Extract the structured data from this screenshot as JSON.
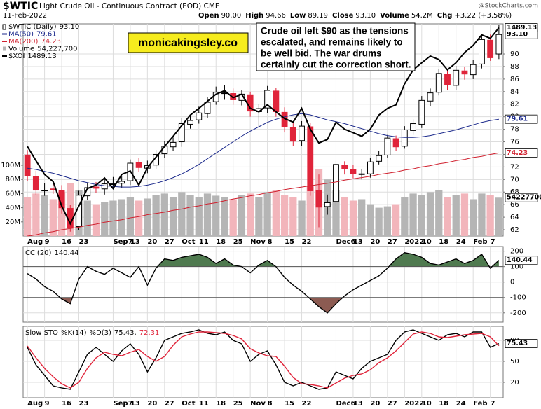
{
  "header": {
    "date": "11-Feb-2022",
    "source": "@StockCharts.com",
    "quote": [
      {
        "label": "Open",
        "value": "90.00"
      },
      {
        "label": "High",
        "value": "94.66"
      },
      {
        "label": "Low",
        "value": "89.19"
      },
      {
        "label": "Close",
        "value": "93.10"
      },
      {
        "label": "Volume",
        "value": "54.2M"
      },
      {
        "label": "Chg",
        "value": "+3.22 (+3.58%)"
      }
    ]
  },
  "annotations": {
    "site": "monicakingsley.co",
    "note": [
      "Crude oil left $90 as the tensions",
      "escalated, and remains likely to",
      "be well bid. The war drums",
      "certainly cut the correction short."
    ]
  },
  "chart_data": [
    {
      "type": "candlestick",
      "title": "$WTIC",
      "subtitle": "Light Crude Oil - Continuous Contract (EOD) CME",
      "legend_label": "$WTIC (Daily)",
      "last_label": "93.10",
      "categories": [
        "Aug",
        null,
        "9",
        null,
        "16",
        null,
        "23",
        null,
        null,
        null,
        "Sep7",
        null,
        "13",
        null,
        "20",
        null,
        "27",
        null,
        "Oct",
        null,
        "11",
        null,
        "18",
        null,
        "25",
        null,
        "Nov",
        null,
        "8",
        null,
        "15",
        null,
        "22",
        null,
        null,
        null,
        "Dec6",
        null,
        "13",
        null,
        "20",
        null,
        "27",
        null,
        "2022",
        null,
        "10",
        null,
        "18",
        null,
        "24",
        null,
        "Feb",
        null,
        "7",
        null
      ],
      "open": [
        73.9,
        70.5,
        68.2,
        68.5,
        68.3,
        65.4,
        62.5,
        67.4,
        68.8,
        68.5,
        69.2,
        69.4,
        69.8,
        72.7,
        71.8,
        72.3,
        74.1,
        75.2,
        76.0,
        78.8,
        79.5,
        80.5,
        82.4,
        83.8,
        83.7,
        82.6,
        83.5,
        80.8,
        81.4,
        84.1,
        80.7,
        78.3,
        76.2,
        78.4,
        68.3,
        65.7,
        66.5,
        72.3,
        71.6,
        70.8,
        70.9,
        72.9,
        73.9,
        76.5,
        75.3,
        77.8,
        78.8,
        82.5,
        83.9,
        86.8,
        85.0,
        87.3,
        86.7,
        88.4,
        92.2,
        90.0
      ],
      "high": [
        74.7,
        71.4,
        69.4,
        69.3,
        69.1,
        66.0,
        68.2,
        69.5,
        69.6,
        70.1,
        70.4,
        70.5,
        73.2,
        73.4,
        73.0,
        74.7,
        76.1,
        76.7,
        79.8,
        80.1,
        81.6,
        83.1,
        84.8,
        85.0,
        84.5,
        84.3,
        84.0,
        82.0,
        84.9,
        84.6,
        81.5,
        79.1,
        79.3,
        79.0,
        70.8,
        67.6,
        73.0,
        72.9,
        72.3,
        71.7,
        73.5,
        74.5,
        77.1,
        77.0,
        78.5,
        79.6,
        83.3,
        84.5,
        87.6,
        87.4,
        88.1,
        88.0,
        89.0,
        93.0,
        93.1,
        94.66
      ],
      "low": [
        69.8,
        67.5,
        67.4,
        67.7,
        64.6,
        61.7,
        62.0,
        66.8,
        67.9,
        67.6,
        68.5,
        68.7,
        69.1,
        71.2,
        71.0,
        71.7,
        73.4,
        74.5,
        75.2,
        78.1,
        78.9,
        79.8,
        81.9,
        82.7,
        81.9,
        81.8,
        80.0,
        78.4,
        80.6,
        80.0,
        77.5,
        75.3,
        75.3,
        67.4,
        62.4,
        64.4,
        65.8,
        70.8,
        70.2,
        70.0,
        70.3,
        72.4,
        73.5,
        74.6,
        74.9,
        77.1,
        78.2,
        81.7,
        83.4,
        84.2,
        84.3,
        85.9,
        86.0,
        87.7,
        88.9,
        89.19
      ],
      "close": [
        70.6,
        68.3,
        68.3,
        68.4,
        65.5,
        62.3,
        67.5,
        68.7,
        68.6,
        69.3,
        69.3,
        69.7,
        72.6,
        71.9,
        72.2,
        74.0,
        75.3,
        75.9,
        78.9,
        79.4,
        80.6,
        82.3,
        83.9,
        83.8,
        82.7,
        83.6,
        80.9,
        81.3,
        84.2,
        80.8,
        78.4,
        76.1,
        78.5,
        68.2,
        65.6,
        66.3,
        72.4,
        71.7,
        70.9,
        70.9,
        72.8,
        73.8,
        76.6,
        75.2,
        77.9,
        78.9,
        82.6,
        83.8,
        86.9,
        85.1,
        87.4,
        86.8,
        88.3,
        92.3,
        89.4,
        93.1
      ],
      "up_color": "#000000",
      "down_color": "#e0243a",
      "ylim": [
        61.0,
        94.8
      ],
      "yticks": [
        62,
        64,
        66,
        68,
        70,
        72,
        74,
        76,
        78,
        80,
        82,
        84,
        86,
        88,
        90
      ],
      "y2lim": [
        900,
        1500
      ],
      "vlim": [
        0,
        300
      ],
      "vticks": [
        {
          "value": 20,
          "label": "20M"
        },
        {
          "value": 40,
          "label": "40M"
        },
        {
          "value": 60,
          "label": "60M"
        },
        {
          "value": 80,
          "label": "80M"
        },
        {
          "value": 100,
          "label": "100M"
        }
      ],
      "grid": true,
      "series": [
        {
          "name": "MA(50)",
          "kind": "line",
          "axis": "y",
          "color": "#1c2a8c",
          "last_label": "79.61",
          "values": [
            71.8,
            71.6,
            71.3,
            71.0,
            70.6,
            70.2,
            69.8,
            69.5,
            69.2,
            69.0,
            68.9,
            68.8,
            68.8,
            68.9,
            69.1,
            69.4,
            69.8,
            70.3,
            70.9,
            71.6,
            72.4,
            73.3,
            74.2,
            75.1,
            76.0,
            76.9,
            77.7,
            78.4,
            79.1,
            79.6,
            80.0,
            80.3,
            80.5,
            80.3,
            79.9,
            79.5,
            79.2,
            78.9,
            78.5,
            78.1,
            77.7,
            77.3,
            77.0,
            76.8,
            76.7,
            76.7,
            76.8,
            77.0,
            77.3,
            77.6,
            77.9,
            78.3,
            78.7,
            79.1,
            79.4,
            79.61
          ]
        },
        {
          "name": "MA(200)",
          "kind": "line",
          "axis": "y",
          "color": "#d0202e",
          "last_label": "74.23",
          "values": [
            61.0,
            61.2,
            61.5,
            61.7,
            62.0,
            62.2,
            62.4,
            62.7,
            62.9,
            63.2,
            63.4,
            63.6,
            63.9,
            64.1,
            64.4,
            64.6,
            64.8,
            65.1,
            65.3,
            65.6,
            65.8,
            66.1,
            66.3,
            66.6,
            66.9,
            67.1,
            67.4,
            67.6,
            67.9,
            68.1,
            68.4,
            68.6,
            68.8,
            69.0,
            69.2,
            69.4,
            69.6,
            69.9,
            70.1,
            70.3,
            70.5,
            70.8,
            71.0,
            71.2,
            71.5,
            71.7,
            72.0,
            72.2,
            72.5,
            72.7,
            73.0,
            73.2,
            73.5,
            73.7,
            74.0,
            74.23
          ]
        },
        {
          "name": "Volume",
          "kind": "volume",
          "axis": "v",
          "up_color": "#b5b5b5",
          "down_color": "#f2b5bb",
          "last_label": "54,227,700",
          "box_label": "54227700",
          "values": [
            55,
            60,
            58,
            52,
            62,
            75,
            65,
            50,
            45,
            48,
            50,
            52,
            55,
            50,
            53,
            58,
            60,
            55,
            62,
            58,
            55,
            60,
            57,
            55,
            52,
            58,
            60,
            55,
            62,
            65,
            58,
            55,
            50,
            70,
            95,
            80,
            65,
            55,
            50,
            52,
            45,
            40,
            42,
            45,
            55,
            60,
            58,
            62,
            65,
            55,
            58,
            60,
            52,
            60,
            58,
            54.2277
          ]
        },
        {
          "name": "$XOI",
          "kind": "line",
          "axis": "y2",
          "color": "#000000",
          "last_label": "1489.13",
          "values": [
            1153,
            1113,
            1074,
            1054,
            985,
            935,
            985,
            1034,
            1044,
            1064,
            1034,
            1074,
            1084,
            1044,
            1093,
            1123,
            1153,
            1182,
            1212,
            1242,
            1261,
            1281,
            1301,
            1311,
            1291,
            1301,
            1261,
            1251,
            1271,
            1251,
            1232,
            1222,
            1261,
            1202,
            1163,
            1173,
            1222,
            1202,
            1192,
            1182,
            1202,
            1242,
            1261,
            1271,
            1330,
            1370,
            1390,
            1409,
            1399,
            1370,
            1390,
            1419,
            1439,
            1469,
            1459,
            1489.13
          ]
        }
      ]
    },
    {
      "type": "line",
      "label": "CCI(20)",
      "last_label": "140.44",
      "color": "#000000",
      "fill_above": 100,
      "fill_below": -100,
      "above_color": "#4f7a4f",
      "below_color": "#8c5b52",
      "ylim": [
        -260,
        230
      ],
      "yticks": [
        200,
        100,
        0,
        -100,
        -200
      ],
      "grid": true,
      "values": [
        55,
        20,
        -30,
        -60,
        -110,
        -140,
        20,
        100,
        70,
        50,
        90,
        60,
        30,
        100,
        -20,
        90,
        150,
        140,
        160,
        170,
        180,
        160,
        120,
        150,
        110,
        100,
        60,
        110,
        140,
        100,
        30,
        -20,
        -60,
        -110,
        -160,
        -200,
        -140,
        -90,
        -50,
        -20,
        10,
        40,
        90,
        150,
        190,
        180,
        160,
        120,
        110,
        130,
        150,
        120,
        140,
        180,
        90,
        140.44
      ]
    },
    {
      "type": "line",
      "label": "Slow STO",
      "ylim": [
        -2,
        100
      ],
      "yticks": [
        80,
        50,
        20
      ],
      "grid": true,
      "series": [
        {
          "name": "%K(14)",
          "color": "#000000",
          "legend_label": "75.43,",
          "box_label": "75.43",
          "values": [
            70,
            45,
            30,
            15,
            12,
            10,
            35,
            60,
            70,
            60,
            50,
            65,
            75,
            60,
            35,
            55,
            80,
            85,
            90,
            92,
            95,
            90,
            88,
            92,
            80,
            75,
            50,
            60,
            65,
            45,
            20,
            15,
            20,
            15,
            10,
            12,
            35,
            30,
            25,
            40,
            50,
            55,
            60,
            80,
            92,
            95,
            90,
            85,
            80,
            88,
            90,
            85,
            92,
            92,
            70,
            75.43
          ]
        },
        {
          "name": "%D(3)",
          "color": "#e0243a",
          "legend_label": "72.31",
          "values": [
            72,
            55,
            40,
            28,
            18,
            12,
            20,
            40,
            55,
            63,
            60,
            58,
            63,
            67,
            57,
            50,
            57,
            73,
            85,
            89,
            92,
            92,
            91,
            90,
            87,
            82,
            68,
            62,
            58,
            57,
            43,
            27,
            18,
            17,
            15,
            12,
            19,
            26,
            30,
            32,
            38,
            48,
            55,
            65,
            77,
            89,
            92,
            90,
            85,
            84,
            86,
            88,
            89,
            90,
            85,
            72.31
          ]
        }
      ]
    }
  ]
}
